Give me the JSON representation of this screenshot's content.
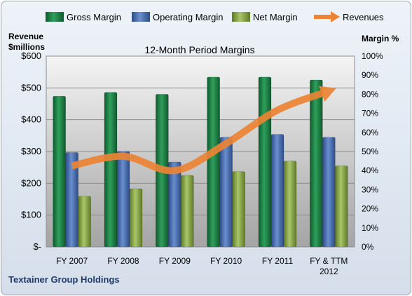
{
  "chart_data": {
    "type": "bar",
    "title": "12-Month Period Margins",
    "company": "Textainer Group Holdings",
    "left_axis_label": [
      "Revenue",
      "$millions"
    ],
    "right_axis_label": "Margin %",
    "left_axis": {
      "ylim": [
        0,
        600
      ],
      "ticks": [
        "$-",
        "$100",
        "$200",
        "$300",
        "$400",
        "$500",
        "$600"
      ]
    },
    "right_axis": {
      "ylim": [
        0,
        100
      ],
      "ticks": [
        "0%",
        "10%",
        "20%",
        "30%",
        "40%",
        "50%",
        "60%",
        "70%",
        "80%",
        "90%",
        "100%"
      ]
    },
    "categories": [
      [
        "FY 2007"
      ],
      [
        "FY 2008"
      ],
      [
        "FY 2009"
      ],
      [
        "FY 2010"
      ],
      [
        "FY 2011"
      ],
      [
        "FY & TTM",
        "2012"
      ]
    ],
    "series": [
      {
        "name": "Gross Margin",
        "axis": "right",
        "kind": "bar",
        "color": "#1f8a4c",
        "values": [
          79,
          81,
          80,
          89,
          89,
          87.5
        ]
      },
      {
        "name": "Operating Margin",
        "axis": "right",
        "kind": "bar",
        "color": "#4f74b8",
        "values": [
          49.5,
          50,
          44.5,
          57.5,
          59,
          57.5
        ]
      },
      {
        "name": "Net Margin",
        "axis": "right",
        "kind": "bar",
        "color": "#8fb04a",
        "values": [
          26.5,
          30.5,
          37.5,
          39.5,
          45,
          42.5
        ]
      },
      {
        "name": "Revenues",
        "axis": "left",
        "kind": "line",
        "color": "#ec8434",
        "values": [
          255,
          285,
          240,
          325,
          430,
          490
        ]
      }
    ],
    "grid": true,
    "legend_position": "top"
  }
}
